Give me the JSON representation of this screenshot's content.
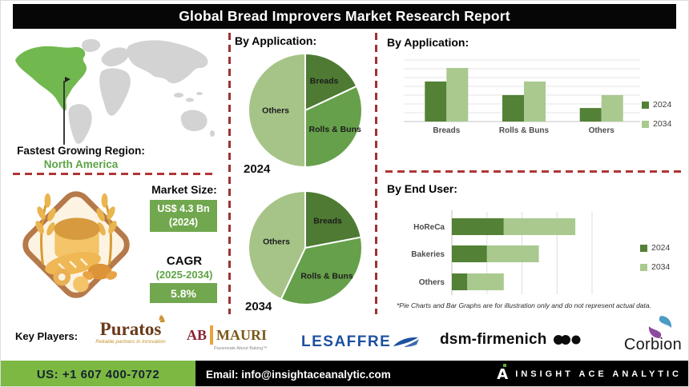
{
  "header": {
    "title": "Global Bread Improvers Market Research Report"
  },
  "region": {
    "label": "Fastest Growing Region:",
    "value": "North America"
  },
  "market": {
    "size_label": "Market Size:",
    "size_value": "US$ 4.3 Bn",
    "size_year": "(2024)",
    "cagr_label": "CAGR",
    "cagr_period": "(2025-2034)",
    "cagr_value": "5.8%"
  },
  "sections": {
    "pie_title": "By Application:",
    "bar_title": "By Application:",
    "end_user_title": "By End User:"
  },
  "pie_years": {
    "y2024": "2024",
    "y2034": "2034"
  },
  "disclaimer": "*Pie Charts and Bar Graphs are for illustration only and do not represent actual data.",
  "key_players": {
    "label": "Key Players:",
    "puratos": {
      "name": "Puratos",
      "tagline": "Reliable partners in innovation"
    },
    "abmauri": {
      "ab": "AB",
      "mauri": "MAURI",
      "tagline": "Passionate About Baking™"
    },
    "lesaffre": {
      "name": "LESAFFRE"
    },
    "dsm": {
      "name": "dsm-firmenich"
    },
    "corbion": {
      "name": "Corbion"
    }
  },
  "footer": {
    "phone": "US: +1 607 400-7072",
    "email": "Email: info@insightaceanalytic.com",
    "brand": "INSIGHT ACE ANALYTIC"
  },
  "colors": {
    "pie": [
      "#4e7a33",
      "#66a04a",
      "#a6c488"
    ],
    "series_2024": "#538135",
    "series_2034": "#a9c98f",
    "divider_red": "#9e3232",
    "accent_green": "#5ea345",
    "box_green": "#71a74e",
    "footer_green": "#7db843",
    "map_highlight": "#71b84e"
  },
  "chart_data": [
    {
      "type": "pie",
      "title": "By Application:",
      "year": "2024",
      "labels": [
        "Breads",
        "Rolls & Buns",
        "Others"
      ],
      "values": [
        18,
        32,
        50
      ],
      "unit": "percent (illustrative)",
      "colors": [
        "#4e7a33",
        "#66a04a",
        "#a6c488"
      ],
      "legend_position": "none"
    },
    {
      "type": "pie",
      "title": "By Application:",
      "year": "2034",
      "labels": [
        "Breads",
        "Rolls & Buns",
        "Others"
      ],
      "values": [
        22,
        35,
        43
      ],
      "unit": "percent (illustrative)",
      "colors": [
        "#4e7a33",
        "#66a04a",
        "#a6c488"
      ],
      "legend_position": "none"
    },
    {
      "type": "bar",
      "orientation": "vertical",
      "title": "By Application:",
      "categories": [
        "Breads",
        "Rolls & Buns",
        "Others"
      ],
      "series": [
        {
          "name": "2024",
          "values": [
            65,
            43,
            22
          ],
          "color": "#538135"
        },
        {
          "name": "2034",
          "values": [
            87,
            65,
            43
          ],
          "color": "#a9c98f"
        }
      ],
      "ylim": [
        0,
        100
      ],
      "grid": true,
      "legend_position": "right",
      "note": "illustrative"
    },
    {
      "type": "bar",
      "orientation": "horizontal",
      "stacked": true,
      "title": "By End User:",
      "categories": [
        "HoReCa",
        "Bakeries",
        "Others"
      ],
      "series": [
        {
          "name": "2024",
          "values": [
            37,
            25,
            11
          ],
          "color": "#538135"
        },
        {
          "name": "2034",
          "values": [
            51,
            37,
            26
          ],
          "color": "#a9c98f"
        }
      ],
      "xlim": [
        0,
        100
      ],
      "grid": true,
      "legend_position": "right",
      "note": "illustrative"
    }
  ]
}
